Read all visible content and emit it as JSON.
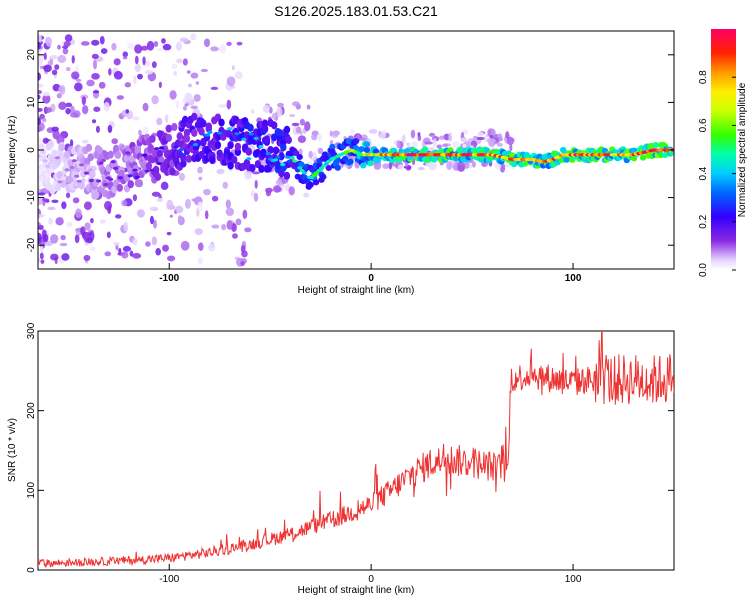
{
  "title": "S126.2025.183.01.53.C21",
  "chart_data": [
    {
      "type": "heatmap",
      "xlabel": "Height of straight line (km)",
      "ylabel": "Frequency (Hz)",
      "xlim": [
        -165,
        150
      ],
      "ylim": [
        -25,
        25
      ],
      "x_ticks": [
        -100,
        0,
        100
      ],
      "y_ticks": [
        -20,
        -10,
        0,
        10,
        20
      ],
      "colorbar": {
        "label": "Normalized spectral amplitude",
        "range": [
          0,
          1
        ],
        "ticks": [
          0.0,
          0.2,
          0.4,
          0.6,
          0.8
        ]
      },
      "ridge": {
        "x": [
          -165,
          -150,
          -130,
          -110,
          -95,
          -85,
          -75,
          -60,
          -50,
          -40,
          -35,
          -30,
          -25,
          -20,
          -15,
          -10,
          -5,
          0,
          10,
          20,
          30,
          40,
          50,
          60,
          70,
          80,
          85,
          90,
          95,
          100,
          110,
          120,
          130,
          140,
          150
        ],
        "y": [
          -3,
          -4,
          -5,
          -2,
          1,
          3,
          2,
          1,
          1,
          -1,
          -4,
          -6,
          -4,
          -2,
          -1,
          0,
          -1,
          -1,
          -1,
          -1,
          -1,
          -1,
          -1,
          -1,
          -2,
          -2,
          -2.5,
          -2,
          -1,
          -1,
          -1,
          -1,
          -1,
          0,
          0
        ],
        "strength": [
          0.05,
          0.1,
          0.15,
          0.2,
          0.3,
          0.35,
          0.35,
          0.4,
          0.4,
          0.45,
          0.5,
          0.55,
          0.5,
          0.5,
          0.55,
          0.6,
          0.65,
          0.75,
          0.9,
          0.95,
          0.95,
          0.9,
          0.9,
          0.9,
          0.9,
          0.95,
          0.9,
          0.85,
          0.9,
          0.95,
          0.9,
          0.9,
          0.95,
          0.95,
          0.95
        ]
      }
    },
    {
      "type": "line",
      "xlabel": "Height of straight line (km)",
      "ylabel": "SNR (10 * v/v)",
      "xlim": [
        -165,
        150
      ],
      "ylim": [
        0,
        300
      ],
      "x_ticks": [
        -100,
        0,
        100
      ],
      "y_ticks": [
        0,
        100,
        200,
        300
      ],
      "color": "#ee3333",
      "trend": {
        "x": [
          -165,
          -140,
          -120,
          -100,
          -80,
          -60,
          -40,
          -20,
          0,
          10,
          20,
          30,
          40,
          50,
          60,
          68,
          69,
          80,
          90,
          100,
          110,
          120,
          130,
          140,
          150
        ],
        "y": [
          8,
          10,
          12,
          15,
          22,
          32,
          45,
          62,
          82,
          100,
          120,
          135,
          138,
          135,
          130,
          125,
          240,
          245,
          240,
          235,
          240,
          238,
          240,
          238,
          242
        ]
      }
    }
  ]
}
